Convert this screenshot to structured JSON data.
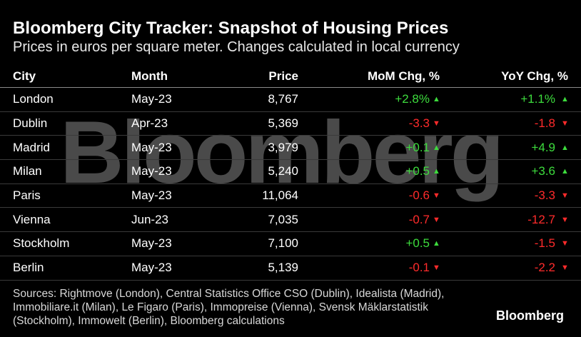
{
  "chart_data": {
    "type": "table",
    "title": "Bloomberg City Tracker: Snapshot of Housing Prices",
    "subtitle": "Prices in euros per square meter. Changes calculated in local currency",
    "columns": [
      "City",
      "Month",
      "Price",
      "MoM Chg, %",
      "YoY Chg, %"
    ],
    "rows": [
      {
        "city": "London",
        "month": "May-23",
        "price": "8,767",
        "mom": "+2.8%",
        "mom_dir": "up",
        "yoy": "+1.1%",
        "yoy_dir": "up"
      },
      {
        "city": "Dublin",
        "month": "Apr-23",
        "price": "5,369",
        "mom": "-3.3",
        "mom_dir": "down",
        "yoy": "-1.8",
        "yoy_dir": "down"
      },
      {
        "city": "Madrid",
        "month": "May-23",
        "price": "3,979",
        "mom": "+0.1",
        "mom_dir": "up",
        "yoy": "+4.9",
        "yoy_dir": "up"
      },
      {
        "city": "Milan",
        "month": "May-23",
        "price": "5,240",
        "mom": "+0.5",
        "mom_dir": "up",
        "yoy": "+3.6",
        "yoy_dir": "up"
      },
      {
        "city": "Paris",
        "month": "May-23",
        "price": "11,064",
        "mom": "-0.6",
        "mom_dir": "down",
        "yoy": "-3.3",
        "yoy_dir": "down"
      },
      {
        "city": "Vienna",
        "month": "Jun-23",
        "price": "7,035",
        "mom": "-0.7",
        "mom_dir": "down",
        "yoy": "-12.7",
        "yoy_dir": "down"
      },
      {
        "city": "Stockholm",
        "month": "May-23",
        "price": "7,100",
        "mom": "+0.5",
        "mom_dir": "up",
        "yoy": "-1.5",
        "yoy_dir": "down"
      },
      {
        "city": "Berlin",
        "month": "May-23",
        "price": "5,139",
        "mom": "-0.1",
        "mom_dir": "down",
        "yoy": "-2.2",
        "yoy_dir": "down"
      }
    ],
    "colors": {
      "positive": "#3ddc3d",
      "negative": "#ff2b2b",
      "up_arrow": "▲",
      "down_arrow": "▼"
    }
  },
  "watermark": "Bloomberg",
  "sources": "Sources: Rightmove (London), Central Statistics Office CSO (Dublin), Idealista (Madrid), Immobiliare.it (Milan), Le Figaro (Paris), Immopreise (Vienna), Svensk Mäklarstatistik (Stockholm), Immowelt (Berlin), Bloomberg calculations",
  "logo": "Bloomberg"
}
